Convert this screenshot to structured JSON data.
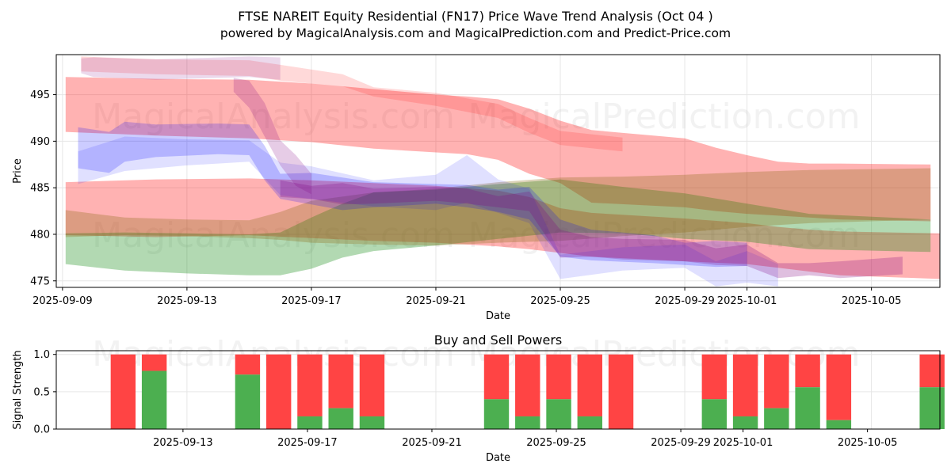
{
  "header": {
    "title": "FTSE NAREIT Equity Residential (FN17) Price Wave Trend Analysis (Oct 04 )",
    "subtitle": "powered by MagicalAnalysis.com and MagicalPrediction.com and Predict-Price.com"
  },
  "watermarks": {
    "left": "MagicalAnalysis.com",
    "right": "MagicalPrediction.com"
  },
  "colors": {
    "red": "#ff0000",
    "green": "#008000",
    "blue": "#0000ff",
    "purple": "#800080",
    "brown": "#8b6914",
    "buy": "#4caf50",
    "sell": "#ff4444"
  },
  "chart_data": [
    {
      "type": "area",
      "title": "",
      "xlabel": "Date",
      "ylabel": "Price",
      "x_start": "2025-09-09",
      "x_range_days": [
        -0.2,
        28.2
      ],
      "ylim": [
        474.3,
        499.3
      ],
      "x_ticks": [
        {
          "day": 0,
          "label": "2025-09-09"
        },
        {
          "day": 4,
          "label": "2025-09-13"
        },
        {
          "day": 8,
          "label": "2025-09-17"
        },
        {
          "day": 12,
          "label": "2025-09-21"
        },
        {
          "day": 16,
          "label": "2025-09-25"
        },
        {
          "day": 20,
          "label": "2025-09-29"
        },
        {
          "day": 22,
          "label": "2025-10-01"
        },
        {
          "day": 26,
          "label": "2025-10-05"
        }
      ],
      "y_ticks": [
        475,
        480,
        485,
        490,
        495
      ],
      "grid": true,
      "series": [
        {
          "name": "red-upper-band",
          "color": "red",
          "opacity": 0.3,
          "x": [
            0.1,
            3,
            6,
            8,
            10,
            12,
            13,
            14,
            15,
            16,
            17,
            20,
            21,
            22,
            23,
            24,
            25,
            27.9
          ],
          "top": [
            496.9,
            496.7,
            496.6,
            496.2,
            495.6,
            495,
            494.8,
            494.5,
            493.5,
            492.2,
            491.2,
            490.3,
            489.3,
            488.5,
            487.8,
            487.6,
            487.6,
            487.5
          ],
          "bottom": [
            491,
            490.6,
            490.3,
            489.9,
            489.2,
            488.8,
            488.6,
            488,
            486.5,
            485.5,
            483.4,
            482.9,
            482.5,
            482.2,
            482,
            481.8,
            481.6,
            481.4
          ]
        },
        {
          "name": "red-top-light",
          "color": "red",
          "opacity": 0.15,
          "x": [
            0.6,
            3,
            6,
            7,
            9,
            10,
            12,
            14,
            15,
            16,
            18
          ],
          "top": [
            499.1,
            498.8,
            498.7,
            498.2,
            497.2,
            495.8,
            495.2,
            494,
            492.5,
            491.1,
            490.4
          ],
          "bottom": [
            497.5,
            497.2,
            497,
            496.5,
            495.9,
            494.8,
            493.8,
            492.5,
            490.9,
            489.6,
            488.9
          ]
        },
        {
          "name": "red-lower-band",
          "color": "red",
          "opacity": 0.3,
          "x": [
            0.1,
            3,
            6,
            8,
            10,
            12,
            14,
            15,
            16,
            17,
            20,
            22,
            23,
            24,
            25,
            28.2
          ],
          "top": [
            485.6,
            485.9,
            486,
            485.8,
            485.5,
            485.2,
            484.7,
            484,
            482.8,
            482.3,
            481.7,
            481.2,
            480.8,
            480.5,
            480.3,
            480.1
          ],
          "bottom": [
            479.9,
            479.7,
            479.9,
            479.6,
            479.3,
            479.1,
            478.7,
            478.4,
            478,
            477.6,
            477.1,
            476.8,
            476.4,
            476,
            475.6,
            475.2
          ]
        },
        {
          "name": "green-band",
          "color": "green",
          "opacity": 0.3,
          "x": [
            0.1,
            2,
            4,
            6,
            7,
            8,
            9,
            10,
            12,
            14,
            16,
            18,
            20,
            22,
            24,
            27.9
          ],
          "top": [
            480.1,
            480.2,
            480.1,
            480,
            480.2,
            481.8,
            483.3,
            484.5,
            484.8,
            485.4,
            485.9,
            485.1,
            484.4,
            483.3,
            482.2,
            481.6
          ],
          "bottom": [
            476.8,
            476.1,
            475.8,
            475.6,
            475.6,
            476.3,
            477.5,
            478.2,
            478.8,
            479.5,
            480.2,
            480.1,
            479.5,
            479.2,
            478.4,
            478.1
          ]
        },
        {
          "name": "brown-band",
          "color": "brown",
          "opacity": 0.3,
          "x": [
            0.1,
            2,
            4,
            6,
            7,
            8,
            10,
            12,
            14,
            16,
            18,
            20,
            22,
            24,
            27.9
          ],
          "top": [
            482.6,
            481.8,
            481.6,
            481.5,
            482.4,
            483.6,
            484.5,
            484.9,
            485.6,
            486.1,
            486.2,
            486.4,
            486.7,
            486.9,
            487.1
          ],
          "bottom": [
            479.7,
            479.9,
            479.8,
            479.6,
            479.4,
            479.1,
            478.9,
            478.8,
            479.1,
            479.3,
            479.8,
            480.2,
            480.8,
            481.2,
            481.6
          ]
        },
        {
          "name": "blue-wave",
          "color": "blue",
          "opacity": 0.2,
          "x": [
            0.5,
            1.5,
            2,
            3,
            5,
            6,
            6.5,
            7,
            8,
            9,
            10,
            12,
            13,
            14,
            15,
            16,
            17,
            19,
            20,
            21,
            22
          ],
          "top": [
            491.5,
            491,
            492.1,
            491.8,
            491.9,
            491.8,
            489.5,
            486.5,
            486.6,
            486.1,
            485.6,
            485.4,
            485.3,
            484.8,
            485.1,
            481.6,
            480.5,
            479.9,
            479.1,
            479.3,
            479.1
          ],
          "bottom": [
            487.1,
            486.6,
            487.8,
            488.3,
            488.6,
            488.5,
            485.8,
            483.8,
            483.2,
            482.6,
            482.9,
            483.3,
            482.9,
            482.4,
            481.6,
            477.6,
            477.2,
            476.9,
            476.7,
            476.5,
            476.6
          ]
        },
        {
          "name": "blue-outer",
          "color": "blue",
          "opacity": 0.12,
          "x": [
            0.5,
            2,
            4,
            6,
            7,
            8,
            10,
            12,
            13,
            14,
            15,
            16,
            18,
            20,
            21,
            22,
            23
          ],
          "top": [
            488.9,
            490.5,
            490.2,
            490.1,
            487.7,
            487.3,
            485.8,
            486.4,
            488.5,
            485.9,
            484.9,
            477.8,
            478.6,
            478.9,
            477.1,
            478.2,
            476.8
          ],
          "bottom": [
            485.4,
            486.8,
            487.4,
            487.8,
            484.2,
            483.8,
            483,
            482.6,
            483.4,
            482.3,
            481.2,
            475.2,
            476.1,
            476.4,
            474.4,
            474.8,
            474.4
          ]
        },
        {
          "name": "purple-wave",
          "color": "purple",
          "opacity": 0.25,
          "x": [
            7,
            8,
            9,
            10,
            12,
            13,
            14,
            15,
            16,
            17,
            18,
            20,
            21,
            22,
            23,
            24,
            25,
            27
          ],
          "top": [
            485.8,
            485.2,
            485.5,
            484.9,
            485.1,
            484.9,
            484.1,
            484.6,
            480.5,
            479.7,
            479.5,
            479.4,
            478.5,
            478.9,
            476.9,
            476.9,
            477.1,
            477.6
          ],
          "bottom": [
            484,
            483.8,
            483.2,
            483.3,
            483.6,
            483.3,
            482.9,
            482.5,
            477.5,
            477.6,
            477.3,
            477.1,
            476.7,
            476.6,
            475.3,
            475.6,
            475.3,
            475.7
          ]
        },
        {
          "name": "lavender-top",
          "color": "purple",
          "opacity": 0.15,
          "x": [
            0.6,
            1,
            3,
            6,
            7
          ],
          "top": [
            498.9,
            499,
            498.8,
            499.1,
            499
          ],
          "bottom": [
            497.3,
            496.9,
            496.6,
            496.9,
            496.6
          ]
        },
        {
          "name": "mauve-spike",
          "color": "purple",
          "opacity": 0.2,
          "x": [
            5.5,
            6,
            6.5,
            7,
            7.5,
            8
          ],
          "top": [
            496.8,
            496.5,
            494.1,
            490.1,
            488.5,
            486.5
          ],
          "bottom": [
            495.3,
            493.6,
            490.5,
            487.4,
            485.2,
            484.3
          ]
        }
      ]
    },
    {
      "type": "bar",
      "title": "Buy and Sell Powers",
      "xlabel": "Date",
      "ylabel": "Signal Strength",
      "ylim": [
        0,
        1.05
      ],
      "y_ticks": [
        0.0,
        0.5,
        1.0
      ],
      "x_ticks": [
        {
          "day": 4,
          "label": "2025-09-13"
        },
        {
          "day": 8,
          "label": "2025-09-17"
        },
        {
          "day": 12,
          "label": "2025-09-21"
        },
        {
          "day": 16,
          "label": "2025-09-25"
        },
        {
          "day": 20,
          "label": "2025-09-29"
        },
        {
          "day": 22,
          "label": "2025-10-01"
        },
        {
          "day": 26,
          "label": "2025-10-05"
        }
      ],
      "bars": [
        {
          "day": 2,
          "buy": 0.0
        },
        {
          "day": 3,
          "buy": 0.78
        },
        {
          "day": 6,
          "buy": 0.73
        },
        {
          "day": 7,
          "buy": 0.0
        },
        {
          "day": 8,
          "buy": 0.17
        },
        {
          "day": 9,
          "buy": 0.28
        },
        {
          "day": 10,
          "buy": 0.17
        },
        {
          "day": 14,
          "buy": 0.4
        },
        {
          "day": 15,
          "buy": 0.17
        },
        {
          "day": 16,
          "buy": 0.4
        },
        {
          "day": 17,
          "buy": 0.17
        },
        {
          "day": 18,
          "buy": 0.0
        },
        {
          "day": 21,
          "buy": 0.4
        },
        {
          "day": 22,
          "buy": 0.17
        },
        {
          "day": 23,
          "buy": 0.28
        },
        {
          "day": 24,
          "buy": 0.56
        },
        {
          "day": 25,
          "buy": 0.12
        },
        {
          "day": 28,
          "buy": 0.56
        }
      ]
    }
  ]
}
